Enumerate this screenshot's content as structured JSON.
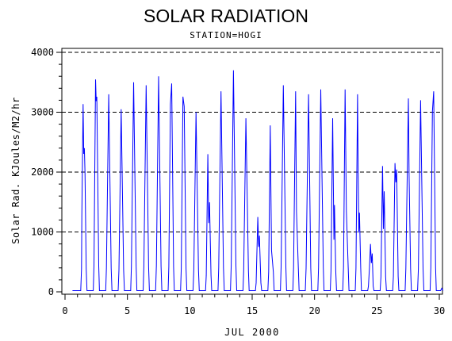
{
  "chart_data": {
    "type": "line",
    "title": "SOLAR RADIATION",
    "subtitle": "STATION=HOGI",
    "xlabel": "JUL 2000",
    "ylabel": "Solar Rad. KJoules/M2/hr",
    "xlim": [
      0,
      30
    ],
    "ylim": [
      0,
      4000
    ],
    "x_ticks": [
      0,
      5,
      10,
      15,
      20,
      25,
      30
    ],
    "y_ticks": [
      0,
      1000,
      2000,
      3000,
      4000
    ],
    "grid": "horizontal-dashed",
    "series_color": "#0000ff",
    "daily_peak": [
      3200,
      3620,
      3300,
      3050,
      3500,
      3450,
      3600,
      3480,
      3260,
      3000,
      2300,
      3350,
      3700,
      2900,
      1250,
      2780,
      3450,
      3350,
      3300,
      3380,
      2900,
      3380,
      3300,
      800,
      2100,
      2150,
      3230,
      3200,
      3350
    ],
    "day_shape": [
      [
        [
          0.35,
          0.4
        ],
        [
          0.45,
          0.98
        ],
        [
          0.5,
          0.72
        ],
        [
          0.55,
          0.75
        ],
        [
          0.6,
          0.62
        ]
      ],
      [
        [
          0.45,
          0.98
        ],
        [
          0.5,
          0.88
        ],
        [
          0.55,
          0.9
        ]
      ],
      [
        [
          0.5,
          1.0
        ]
      ],
      [
        [
          0.5,
          1.0
        ]
      ],
      [
        [
          0.5,
          1.0
        ]
      ],
      [
        [
          0.5,
          1.0
        ]
      ],
      [
        [
          0.5,
          1.0
        ]
      ],
      [
        [
          0.45,
          0.9
        ],
        [
          0.55,
          1.0
        ]
      ],
      [
        [
          0.45,
          1.0
        ],
        [
          0.55,
          0.95
        ]
      ],
      [
        [
          0.5,
          1.0
        ]
      ],
      [
        [
          0.45,
          1.0
        ],
        [
          0.52,
          0.5
        ],
        [
          0.58,
          0.65
        ]
      ],
      [
        [
          0.5,
          1.0
        ]
      ],
      [
        [
          0.5,
          1.0
        ]
      ],
      [
        [
          0.5,
          1.0
        ]
      ],
      [
        [
          0.45,
          1.0
        ],
        [
          0.52,
          0.6
        ],
        [
          0.58,
          0.75
        ]
      ],
      [
        [
          0.45,
          1.0
        ],
        [
          0.55,
          0.25
        ]
      ],
      [
        [
          0.5,
          1.0
        ]
      ],
      [
        [
          0.48,
          1.0
        ],
        [
          0.55,
          0.4
        ]
      ],
      [
        [
          0.45,
          0.7
        ],
        [
          0.52,
          1.0
        ]
      ],
      [
        [
          0.5,
          1.0
        ]
      ],
      [
        [
          0.45,
          1.0
        ],
        [
          0.55,
          0.3
        ],
        [
          0.6,
          0.5
        ]
      ],
      [
        [
          0.45,
          1.0
        ],
        [
          0.55,
          0.4
        ]
      ],
      [
        [
          0.45,
          1.0
        ],
        [
          0.5,
          0.6
        ],
        [
          0.55,
          0.3
        ],
        [
          0.6,
          0.4
        ]
      ],
      [
        [
          0.4,
          0.5
        ],
        [
          0.48,
          1.0
        ],
        [
          0.55,
          0.6
        ],
        [
          0.62,
          0.8
        ]
      ],
      [
        [
          0.45,
          1.0
        ],
        [
          0.52,
          0.5
        ],
        [
          0.58,
          0.8
        ]
      ],
      [
        [
          0.45,
          1.0
        ],
        [
          0.52,
          0.85
        ],
        [
          0.58,
          0.95
        ]
      ],
      [
        [
          0.45,
          0.7
        ],
        [
          0.52,
          1.0
        ],
        [
          0.58,
          0.6
        ]
      ],
      [
        [
          0.5,
          1.0
        ]
      ],
      [
        [
          0.45,
          0.9
        ],
        [
          0.55,
          1.0
        ]
      ]
    ]
  }
}
